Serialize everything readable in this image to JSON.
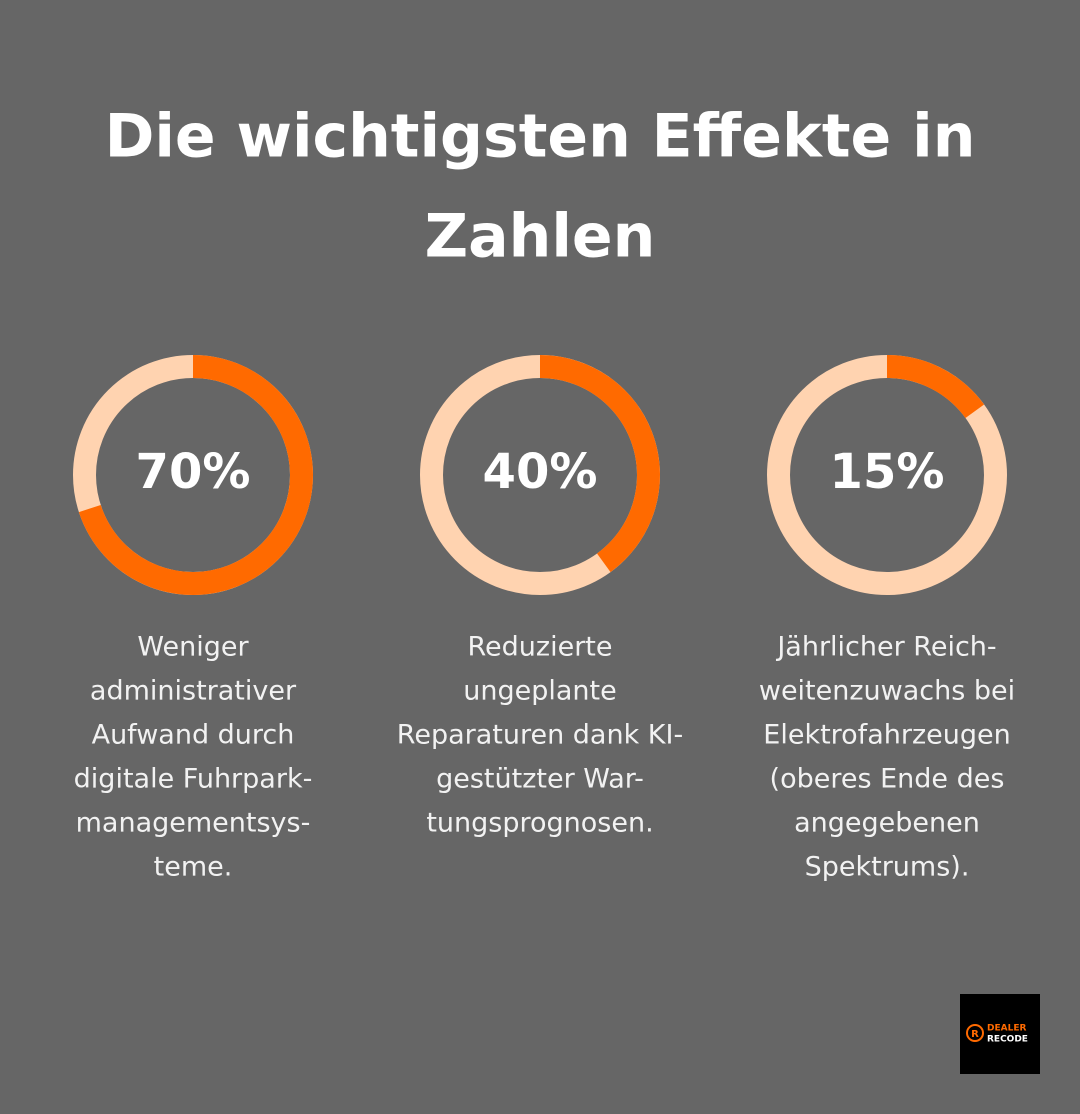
{
  "title_lines": [
    "Die wichtigsten Effekte in",
    "Zahlen"
  ],
  "chart_data": [
    {
      "type": "donut",
      "values": [
        70
      ],
      "value_labels": [
        "70%"
      ],
      "range": [
        0,
        100
      ],
      "color": "#ff6a00",
      "track_color": "#ffd3b0",
      "description_lines": [
        "Weniger",
        "administrativer",
        "Aufwand durch",
        "digitale Fuhrpark-",
        "managementsys-",
        "teme."
      ]
    },
    {
      "type": "donut",
      "values": [
        40
      ],
      "value_labels": [
        "40%"
      ],
      "range": [
        0,
        100
      ],
      "color": "#ff6a00",
      "track_color": "#ffd3b0",
      "description_lines": [
        "Reduzierte",
        "ungeplante",
        "Reparaturen dank KI-",
        "gestützter War-",
        "tungsprognosen."
      ]
    },
    {
      "type": "donut",
      "values": [
        15
      ],
      "value_labels": [
        "15%"
      ],
      "range": [
        0,
        100
      ],
      "color": "#ff6a00",
      "track_color": "#ffd3b0",
      "description_lines": [
        "Jährlicher Reich-",
        "weitenzuwachs bei",
        "Elektrofahrzeugen",
        "(oberes Ende des",
        "angegebenen",
        "Spektrums)."
      ]
    }
  ],
  "logo": {
    "mark": "R",
    "line1": "DEALER",
    "line2": "RECODE"
  }
}
